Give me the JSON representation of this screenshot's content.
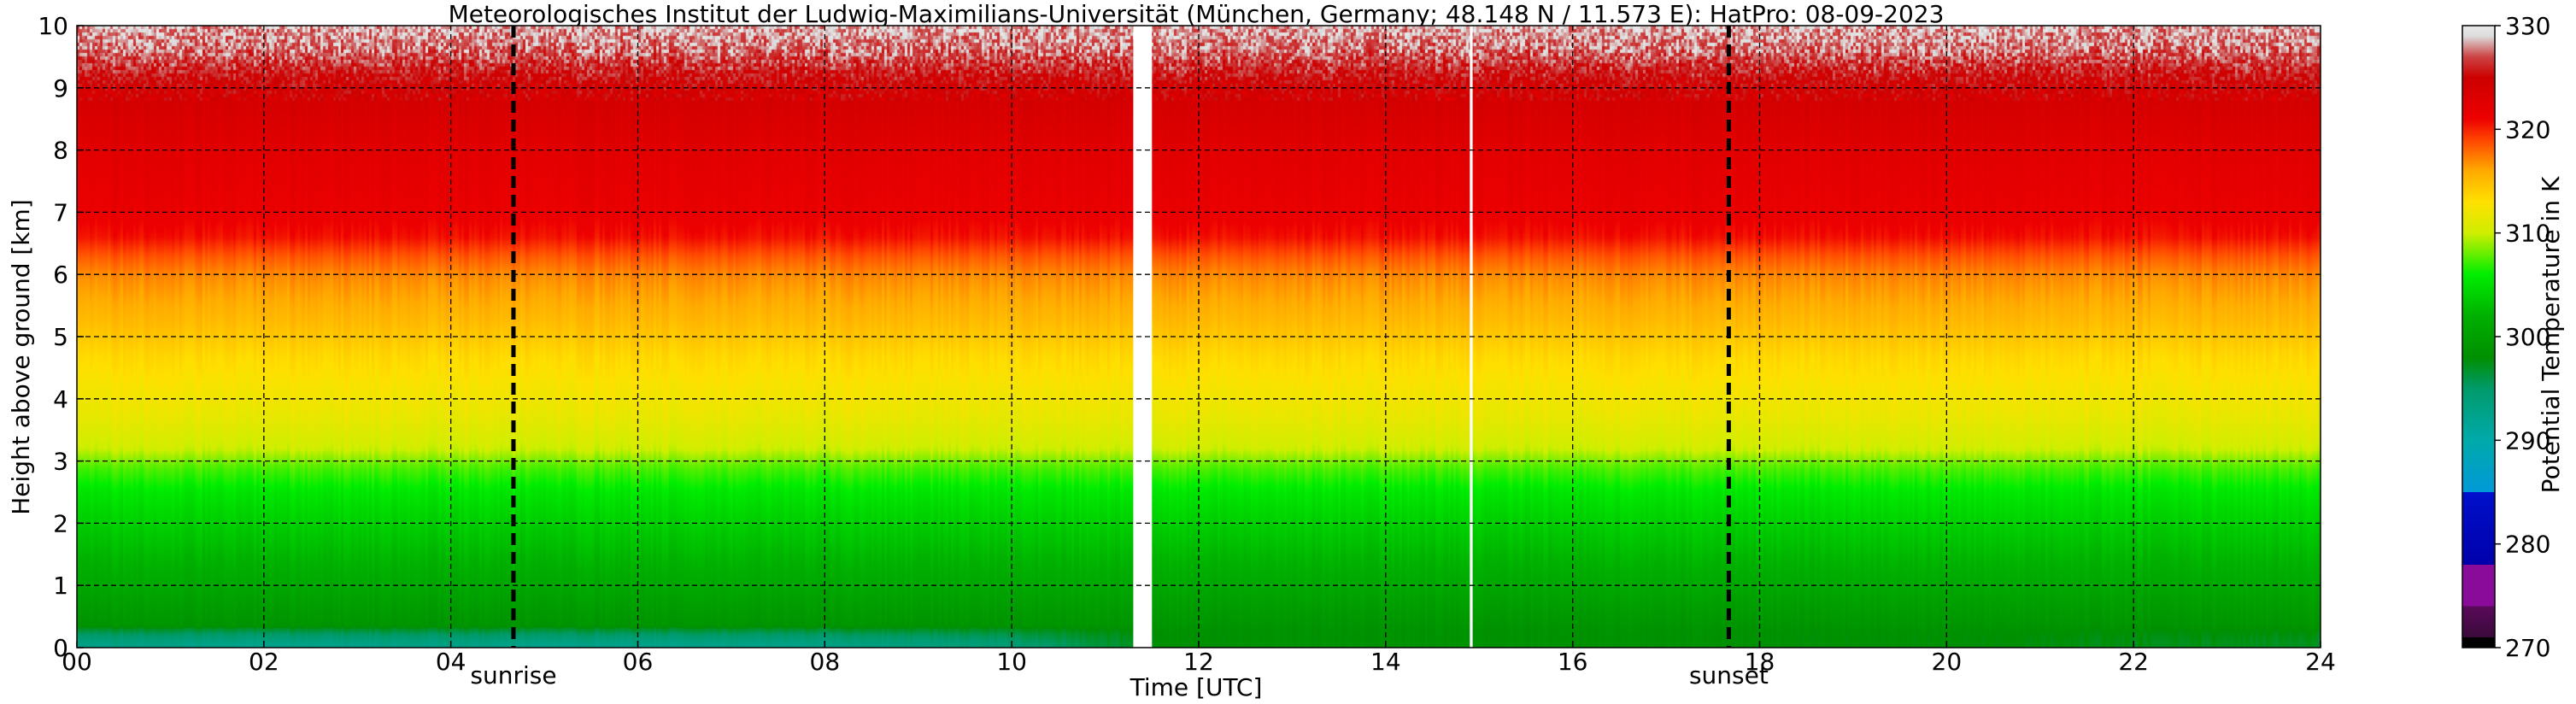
{
  "chart_data": {
    "type": "heatmap",
    "title": "Meteorologisches Institut der Ludwig-Maximilians-Universität (München, Germany; 48.148 N / 11.573 E):    HatPro: 08-09-2023",
    "xlabel": "Time [UTC]",
    "ylabel": "Height above ground [km]",
    "xlim": [
      0,
      24
    ],
    "ylim": [
      0,
      10
    ],
    "x_ticks": [
      0,
      2,
      4,
      6,
      8,
      10,
      12,
      14,
      16,
      18,
      20,
      22,
      24
    ],
    "x_tick_labels": [
      "00",
      "02",
      "04",
      "06",
      "08",
      "10",
      "12",
      "14",
      "16",
      "18",
      "20",
      "22",
      "24"
    ],
    "y_ticks": [
      0,
      1,
      2,
      3,
      4,
      5,
      6,
      7,
      8,
      9,
      10
    ],
    "y_tick_labels": [
      "0",
      "1",
      "2",
      "3",
      "4",
      "5",
      "6",
      "7",
      "8",
      "9",
      "10"
    ],
    "grid": true,
    "events": [
      {
        "name": "sunrise",
        "x": 4.67
      },
      {
        "name": "sunset",
        "x": 17.67
      }
    ],
    "data_gaps": [
      {
        "x_start": 11.3,
        "x_end": 11.5
      },
      {
        "x_start": 14.9,
        "x_end": 14.93
      }
    ],
    "colorbar": {
      "label": "Potential Temperature in K",
      "range": [
        270,
        330
      ],
      "ticks": [
        270,
        280,
        290,
        300,
        310,
        320,
        330
      ],
      "tick_labels": [
        "270",
        "280",
        "290",
        "300",
        "310",
        "320",
        "330"
      ],
      "stops": [
        {
          "value": 270.0,
          "color": "#000000"
        },
        {
          "value": 271.0,
          "color": "#000000"
        },
        {
          "value": 271.0,
          "color": "#3a0a3a"
        },
        {
          "value": 274.0,
          "color": "#5a0a5a"
        },
        {
          "value": 274.0,
          "color": "#8a0a9a"
        },
        {
          "value": 278.0,
          "color": "#8a0a9a"
        },
        {
          "value": 278.0,
          "color": "#0000aa"
        },
        {
          "value": 285.0,
          "color": "#0010cc"
        },
        {
          "value": 285.0,
          "color": "#0099d8"
        },
        {
          "value": 290.0,
          "color": "#00aaaa"
        },
        {
          "value": 295.0,
          "color": "#009a6a"
        },
        {
          "value": 298.0,
          "color": "#008f00"
        },
        {
          "value": 302.0,
          "color": "#00b000"
        },
        {
          "value": 306.0,
          "color": "#00ee00"
        },
        {
          "value": 310.0,
          "color": "#d0ee00"
        },
        {
          "value": 313.0,
          "color": "#ffe000"
        },
        {
          "value": 316.0,
          "color": "#ffaa00"
        },
        {
          "value": 319.0,
          "color": "#ff4400"
        },
        {
          "value": 321.0,
          "color": "#ee0000"
        },
        {
          "value": 325.0,
          "color": "#cc0000"
        },
        {
          "value": 327.0,
          "color": "#cc4444"
        },
        {
          "value": 329.0,
          "color": "#dddddd"
        },
        {
          "value": 330.0,
          "color": "#e8e8e8"
        }
      ]
    },
    "profile": {
      "height_km": [
        0.0,
        0.3,
        0.6,
        1.0,
        1.5,
        2.0,
        2.5,
        2.9,
        3.2,
        3.7,
        4.2,
        4.7,
        5.2,
        5.6,
        6.0,
        6.3,
        6.6,
        7.0,
        7.5,
        8.0,
        8.5,
        9.0,
        9.3,
        9.6,
        10.0
      ],
      "temperature_K": [
        297.5,
        298.5,
        299.5,
        301.0,
        302.5,
        304.0,
        305.5,
        307.5,
        310.0,
        311.5,
        312.5,
        313.5,
        315.0,
        316.0,
        317.0,
        318.5,
        320.5,
        321.5,
        322.0,
        322.5,
        323.5,
        324.5,
        326.0,
        327.5,
        328.5
      ]
    },
    "surface_layer": {
      "height_km": 0.35,
      "cool_times": [
        0,
        2,
        4,
        6,
        8,
        10,
        11.3,
        11.5,
        13,
        16,
        20,
        24
      ],
      "cool_temperature_K": [
        292.5,
        292.0,
        292.5,
        292.0,
        292.5,
        294.0,
        297.0,
        298.0,
        298.5,
        298.5,
        298.0,
        297.0
      ]
    }
  }
}
